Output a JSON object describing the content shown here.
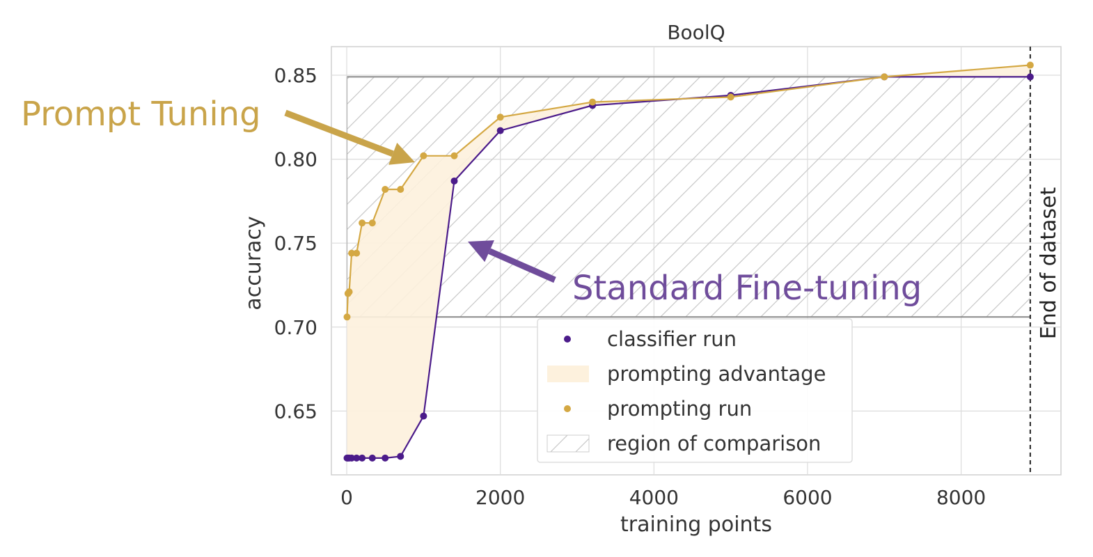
{
  "chart_data": {
    "type": "line",
    "title": "BoolQ",
    "xlabel": "training points",
    "ylabel": "accuracy",
    "xlim": [
      -200,
      9300
    ],
    "ylim": [
      0.612,
      0.867
    ],
    "x_ticks": [
      0,
      2000,
      4000,
      6000,
      8000
    ],
    "y_ticks": [
      0.65,
      0.7,
      0.75,
      0.8,
      0.85
    ],
    "grid": true,
    "legend_position": "lower-center",
    "series": [
      {
        "name": "classifier run",
        "color": "#4b1b8a",
        "x": [
          4,
          16,
          32,
          64,
          128,
          200,
          333,
          500,
          700,
          1000,
          1400,
          2000,
          3200,
          5000,
          7000,
          8900
        ],
        "y": [
          0.622,
          0.622,
          0.622,
          0.622,
          0.622,
          0.622,
          0.622,
          0.622,
          0.623,
          0.647,
          0.787,
          0.817,
          0.832,
          0.838,
          0.849,
          0.849
        ]
      },
      {
        "name": "prompting run",
        "color": "#d4a843",
        "x": [
          4,
          16,
          32,
          64,
          128,
          200,
          333,
          500,
          700,
          1000,
          1400,
          2000,
          3200,
          5000,
          7000,
          8900
        ],
        "y": [
          0.706,
          0.72,
          0.721,
          0.744,
          0.744,
          0.762,
          0.762,
          0.782,
          0.782,
          0.802,
          0.802,
          0.825,
          0.834,
          0.837,
          0.849,
          0.856
        ]
      }
    ],
    "shaded_area": {
      "name": "prompting advantage",
      "color": "#fdf1dd"
    },
    "comparison_region": {
      "name": "region of comparison",
      "x_range": [
        4,
        8900
      ],
      "y_range": [
        0.706,
        0.849
      ]
    },
    "vline": {
      "x": 8900,
      "label": "End of dataset"
    },
    "annotations": [
      {
        "text": "Prompt Tuning",
        "color": "#c9a44a"
      },
      {
        "text": "Standard Fine-tuning",
        "color": "#6f4c9b"
      }
    ]
  }
}
